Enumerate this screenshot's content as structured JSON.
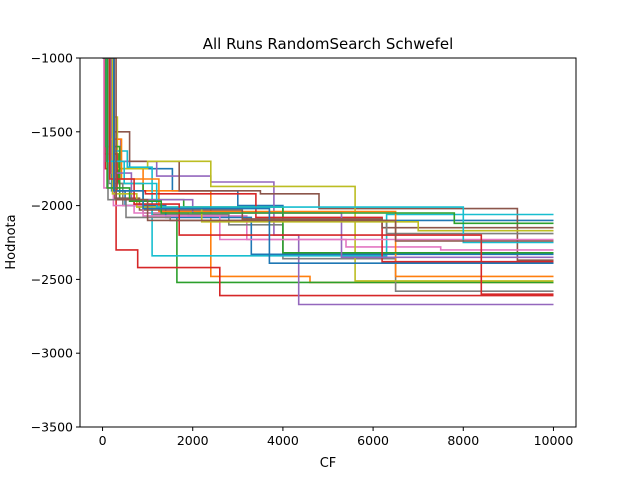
{
  "chart_data": {
    "type": "line",
    "step": "post",
    "title": "All Runs RandomSearch Schwefel",
    "xlabel": "CF",
    "ylabel": "Hodnota",
    "xlim": [
      -500,
      10500
    ],
    "ylim": [
      -3500,
      -1000
    ],
    "xticks": [
      0,
      2000,
      4000,
      6000,
      8000,
      10000
    ],
    "yticks": [
      -1000,
      -1500,
      -2000,
      -2500,
      -3000,
      -3500
    ],
    "grid": false,
    "legend": "none",
    "palette": [
      "#1f77b4",
      "#ff7f0e",
      "#2ca02c",
      "#d62728",
      "#9467bd",
      "#8c564b",
      "#e377c2",
      "#7f7f7f",
      "#bcbd22",
      "#17becf"
    ],
    "series": [
      {
        "color": "#1f77b4",
        "x": [
          0,
          120,
          260,
          600,
          1550,
          3000,
          4000,
          10000
        ],
        "y": [
          -1000,
          -1500,
          -1700,
          -1750,
          -1900,
          -2000,
          -2100,
          -2100
        ]
      },
      {
        "color": "#ff7f0e",
        "x": [
          0,
          80,
          300,
          900,
          2400,
          4600,
          10000
        ],
        "y": [
          -1000,
          -1600,
          -1750,
          -1900,
          -2480,
          -2520,
          -2520
        ]
      },
      {
        "color": "#2ca02c",
        "x": [
          0,
          100,
          350,
          900,
          1650,
          10000
        ],
        "y": [
          -1000,
          -1650,
          -1850,
          -2050,
          -2520,
          -2520
        ]
      },
      {
        "color": "#d62728",
        "x": [
          0,
          60,
          300,
          780,
          1600,
          2600,
          10000
        ],
        "y": [
          -1000,
          -1750,
          -2300,
          -2420,
          -2420,
          -2610,
          -2610
        ]
      },
      {
        "color": "#9467bd",
        "x": [
          0,
          150,
          400,
          1200,
          2400,
          3800,
          4350,
          10000
        ],
        "y": [
          -1000,
          -1550,
          -1700,
          -1800,
          -1840,
          -2200,
          -2670,
          -2670
        ]
      },
      {
        "color": "#8c564b",
        "x": [
          0,
          50,
          200,
          600,
          1700,
          3500,
          4800,
          9200,
          10000
        ],
        "y": [
          -1000,
          -1300,
          -1500,
          -1700,
          -1900,
          -1920,
          -2020,
          -2370,
          -2370
        ]
      },
      {
        "color": "#e377c2",
        "x": [
          0,
          90,
          280,
          700,
          1900,
          3200,
          5400,
          7500,
          10000
        ],
        "y": [
          -1000,
          -1700,
          -1900,
          -2050,
          -2070,
          -2230,
          -2280,
          -2300,
          -2300
        ]
      },
      {
        "color": "#7f7f7f",
        "x": [
          0,
          140,
          450,
          1100,
          2800,
          4000,
          6500,
          10000
        ],
        "y": [
          -1000,
          -1850,
          -2000,
          -2060,
          -2130,
          -2360,
          -2580,
          -2580
        ]
      },
      {
        "color": "#bcbd22",
        "x": [
          0,
          110,
          330,
          1000,
          2400,
          3800,
          5600,
          10000
        ],
        "y": [
          -1000,
          -1400,
          -1750,
          -1700,
          -1870,
          -1870,
          -2510,
          -2510
        ]
      },
      {
        "color": "#17becf",
        "x": [
          0,
          70,
          230,
          550,
          1100,
          2700,
          6300,
          10000
        ],
        "y": [
          -1000,
          -1450,
          -1630,
          -1740,
          -2340,
          -2340,
          -2060,
          -2060
        ]
      },
      {
        "color": "#1f77b4",
        "x": [
          0,
          200,
          500,
          1400,
          3300,
          10000
        ],
        "y": [
          -1000,
          -1900,
          -2000,
          -2080,
          -2330,
          -2330
        ]
      },
      {
        "color": "#ff7f0e",
        "x": [
          0,
          130,
          420,
          1250,
          2500,
          6500,
          10000
        ],
        "y": [
          -1000,
          -1550,
          -1820,
          -2040,
          -2040,
          -2480,
          -2480
        ]
      },
      {
        "color": "#2ca02c",
        "x": [
          0,
          60,
          380,
          1800,
          4000,
          10000
        ],
        "y": [
          -1000,
          -1600,
          -1960,
          -2010,
          -2320,
          -2320
        ]
      },
      {
        "color": "#d62728",
        "x": [
          0,
          40,
          320,
          950,
          3400,
          6200,
          10000
        ],
        "y": [
          -1000,
          -1650,
          -1900,
          -1920,
          -2080,
          -2380,
          -2380
        ]
      },
      {
        "color": "#9467bd",
        "x": [
          0,
          180,
          640,
          2000,
          5300,
          10000
        ],
        "y": [
          -1000,
          -1780,
          -1960,
          -2050,
          -2350,
          -2350
        ]
      },
      {
        "color": "#8c564b",
        "x": [
          0,
          260,
          820,
          3100,
          6200,
          10000
        ],
        "y": [
          -1000,
          -1950,
          -2030,
          -2090,
          -2150,
          -2150
        ]
      },
      {
        "color": "#e377c2",
        "x": [
          0,
          30,
          240,
          900,
          2600,
          10000
        ],
        "y": [
          -1000,
          -1880,
          -2000,
          -2070,
          -2230,
          -2230
        ]
      },
      {
        "color": "#7f7f7f",
        "x": [
          0,
          120,
          520,
          1500,
          6300,
          10000
        ],
        "y": [
          -1000,
          -1960,
          -2080,
          -2100,
          -2190,
          -2190
        ]
      },
      {
        "color": "#bcbd22",
        "x": [
          0,
          220,
          760,
          2200,
          7000,
          10000
        ],
        "y": [
          -1000,
          -1920,
          -2010,
          -2110,
          -2170,
          -2170
        ]
      },
      {
        "color": "#17becf",
        "x": [
          0,
          90,
          480,
          1200,
          8000,
          10000
        ],
        "y": [
          -1000,
          -1700,
          -1850,
          -2010,
          -2250,
          -2250
        ]
      },
      {
        "color": "#d62728",
        "x": [
          0,
          160,
          700,
          1700,
          8400,
          10000
        ],
        "y": [
          -1000,
          -1820,
          -1990,
          -2200,
          -2600,
          -2600
        ]
      },
      {
        "color": "#2ca02c",
        "x": [
          0,
          100,
          600,
          1300,
          7800,
          10000
        ],
        "y": [
          -1000,
          -1880,
          -1970,
          -2050,
          -2120,
          -2120
        ]
      },
      {
        "color": "#1f77b4",
        "x": [
          0,
          250,
          900,
          3700,
          10000
        ],
        "y": [
          -1000,
          -1900,
          -2020,
          -2390,
          -2390
        ]
      },
      {
        "color": "#8c564b",
        "x": [
          0,
          300,
          1000,
          6500,
          10000
        ],
        "y": [
          -1000,
          -1960,
          -2100,
          -2240,
          -2240
        ]
      }
    ]
  }
}
